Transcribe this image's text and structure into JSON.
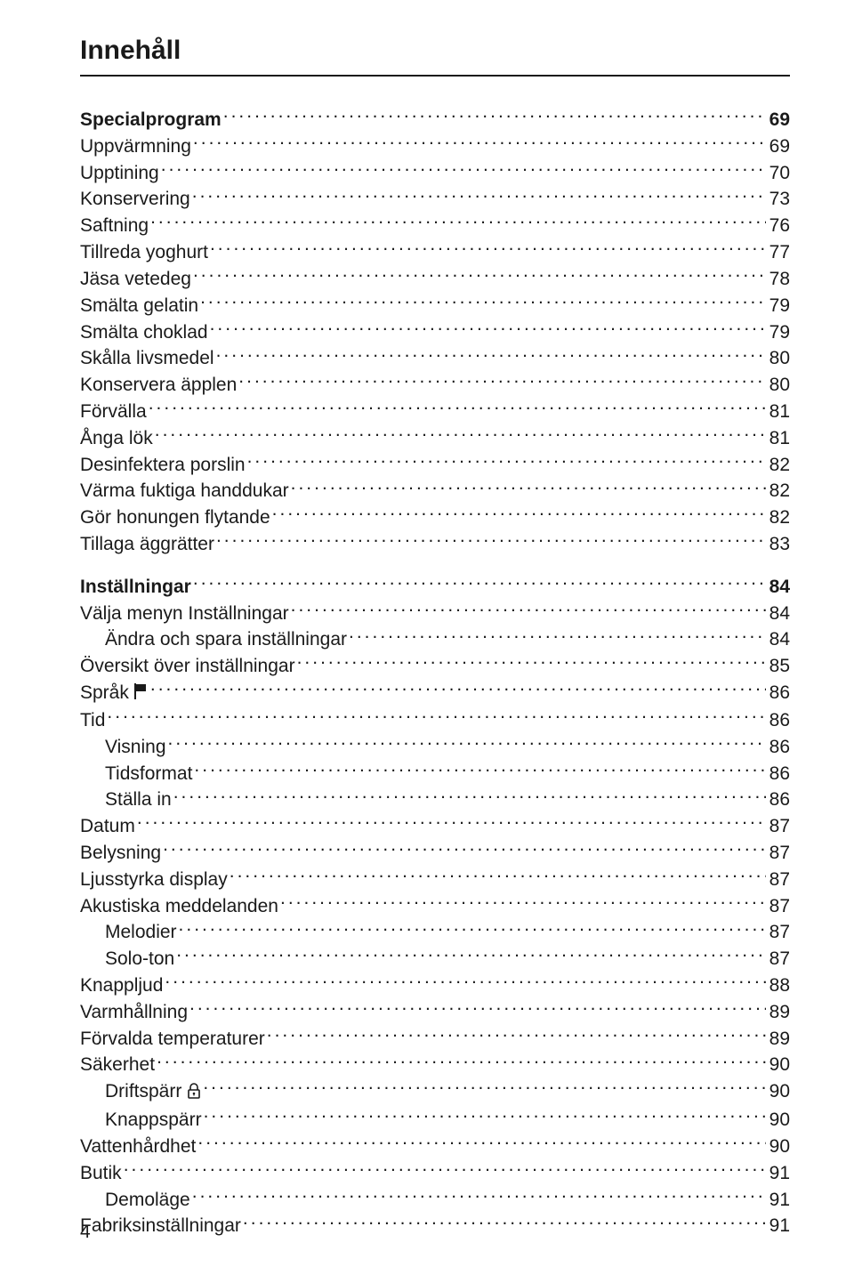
{
  "header": {
    "title": "Innehåll"
  },
  "text_color": "#1a1a1a",
  "background_color": "#ffffff",
  "leader_color": "#1a1a1a",
  "font": {
    "title_size_pt": 22,
    "body_size_pt": 16,
    "bold_weight": 700,
    "normal_weight": 400
  },
  "page_number": "4",
  "groups": [
    {
      "gap_before": false,
      "rows": [
        {
          "label": "Specialprogram",
          "page": "69",
          "bold": true,
          "indent": 0,
          "icon": null
        },
        {
          "label": "Uppvärmning",
          "page": "69",
          "bold": false,
          "indent": 0,
          "icon": null
        },
        {
          "label": "Upptining",
          "page": "70",
          "bold": false,
          "indent": 0,
          "icon": null
        },
        {
          "label": "Konservering",
          "page": "73",
          "bold": false,
          "indent": 0,
          "icon": null
        },
        {
          "label": "Saftning",
          "page": "76",
          "bold": false,
          "indent": 0,
          "icon": null
        },
        {
          "label": "Tillreda yoghurt",
          "page": "77",
          "bold": false,
          "indent": 0,
          "icon": null
        },
        {
          "label": "Jäsa vetedeg",
          "page": "78",
          "bold": false,
          "indent": 0,
          "icon": null
        },
        {
          "label": "Smälta gelatin",
          "page": "79",
          "bold": false,
          "indent": 0,
          "icon": null
        },
        {
          "label": "Smälta choklad",
          "page": "79",
          "bold": false,
          "indent": 0,
          "icon": null
        },
        {
          "label": "Skålla livsmedel",
          "page": "80",
          "bold": false,
          "indent": 0,
          "icon": null
        },
        {
          "label": "Konservera äpplen",
          "page": "80",
          "bold": false,
          "indent": 0,
          "icon": null
        },
        {
          "label": "Förvälla",
          "page": "81",
          "bold": false,
          "indent": 0,
          "icon": null
        },
        {
          "label": "Ånga lök",
          "page": "81",
          "bold": false,
          "indent": 0,
          "icon": null
        },
        {
          "label": "Desinfektera porslin",
          "page": "82",
          "bold": false,
          "indent": 0,
          "icon": null
        },
        {
          "label": "Värma fuktiga handdukar",
          "page": "82",
          "bold": false,
          "indent": 0,
          "icon": null
        },
        {
          "label": "Gör honungen flytande",
          "page": "82",
          "bold": false,
          "indent": 0,
          "icon": null
        },
        {
          "label": "Tillaga äggrätter",
          "page": "83",
          "bold": false,
          "indent": 0,
          "icon": null
        }
      ]
    },
    {
      "gap_before": true,
      "rows": [
        {
          "label": "Inställningar",
          "page": "84",
          "bold": true,
          "indent": 0,
          "icon": null
        },
        {
          "label": "Välja menyn Inställningar",
          "page": "84",
          "bold": false,
          "indent": 0,
          "icon": null
        },
        {
          "label": "Ändra och spara inställningar",
          "page": "84",
          "bold": false,
          "indent": 1,
          "icon": null
        },
        {
          "label": "Översikt över inställningar",
          "page": "85",
          "bold": false,
          "indent": 0,
          "icon": null
        },
        {
          "label": "Språk",
          "page": "86",
          "bold": false,
          "indent": 0,
          "icon": "flag"
        },
        {
          "label": "Tid",
          "page": "86",
          "bold": false,
          "indent": 0,
          "icon": null
        },
        {
          "label": "Visning",
          "page": "86",
          "bold": false,
          "indent": 1,
          "icon": null
        },
        {
          "label": "Tidsformat",
          "page": "86",
          "bold": false,
          "indent": 1,
          "icon": null
        },
        {
          "label": "Ställa in",
          "page": "86",
          "bold": false,
          "indent": 1,
          "icon": null
        },
        {
          "label": "Datum",
          "page": "87",
          "bold": false,
          "indent": 0,
          "icon": null
        },
        {
          "label": "Belysning",
          "page": "87",
          "bold": false,
          "indent": 0,
          "icon": null
        },
        {
          "label": "Ljusstyrka display",
          "page": "87",
          "bold": false,
          "indent": 0,
          "icon": null
        },
        {
          "label": "Akustiska meddelanden",
          "page": "87",
          "bold": false,
          "indent": 0,
          "icon": null
        },
        {
          "label": "Melodier",
          "page": "87",
          "bold": false,
          "indent": 1,
          "icon": null
        },
        {
          "label": "Solo-ton",
          "page": "87",
          "bold": false,
          "indent": 1,
          "icon": null
        },
        {
          "label": "Knappljud",
          "page": "88",
          "bold": false,
          "indent": 0,
          "icon": null
        },
        {
          "label": "Varmhållning",
          "page": "89",
          "bold": false,
          "indent": 0,
          "icon": null
        },
        {
          "label": "Förvalda temperaturer",
          "page": "89",
          "bold": false,
          "indent": 0,
          "icon": null
        },
        {
          "label": "Säkerhet",
          "page": "90",
          "bold": false,
          "indent": 0,
          "icon": null
        },
        {
          "label": "Driftspärr",
          "page": "90",
          "bold": false,
          "indent": 1,
          "icon": "lock"
        },
        {
          "label": "Knappspärr",
          "page": "90",
          "bold": false,
          "indent": 1,
          "icon": null
        },
        {
          "label": "Vattenhårdhet",
          "page": "90",
          "bold": false,
          "indent": 0,
          "icon": null
        },
        {
          "label": "Butik",
          "page": "91",
          "bold": false,
          "indent": 0,
          "icon": null
        },
        {
          "label": "Demoläge",
          "page": "91",
          "bold": false,
          "indent": 1,
          "icon": null
        },
        {
          "label": "Fabriksinställningar",
          "page": "91",
          "bold": false,
          "indent": 0,
          "icon": null
        }
      ]
    }
  ],
  "icons": {
    "flag": "flag-icon",
    "lock": "lock-icon"
  }
}
